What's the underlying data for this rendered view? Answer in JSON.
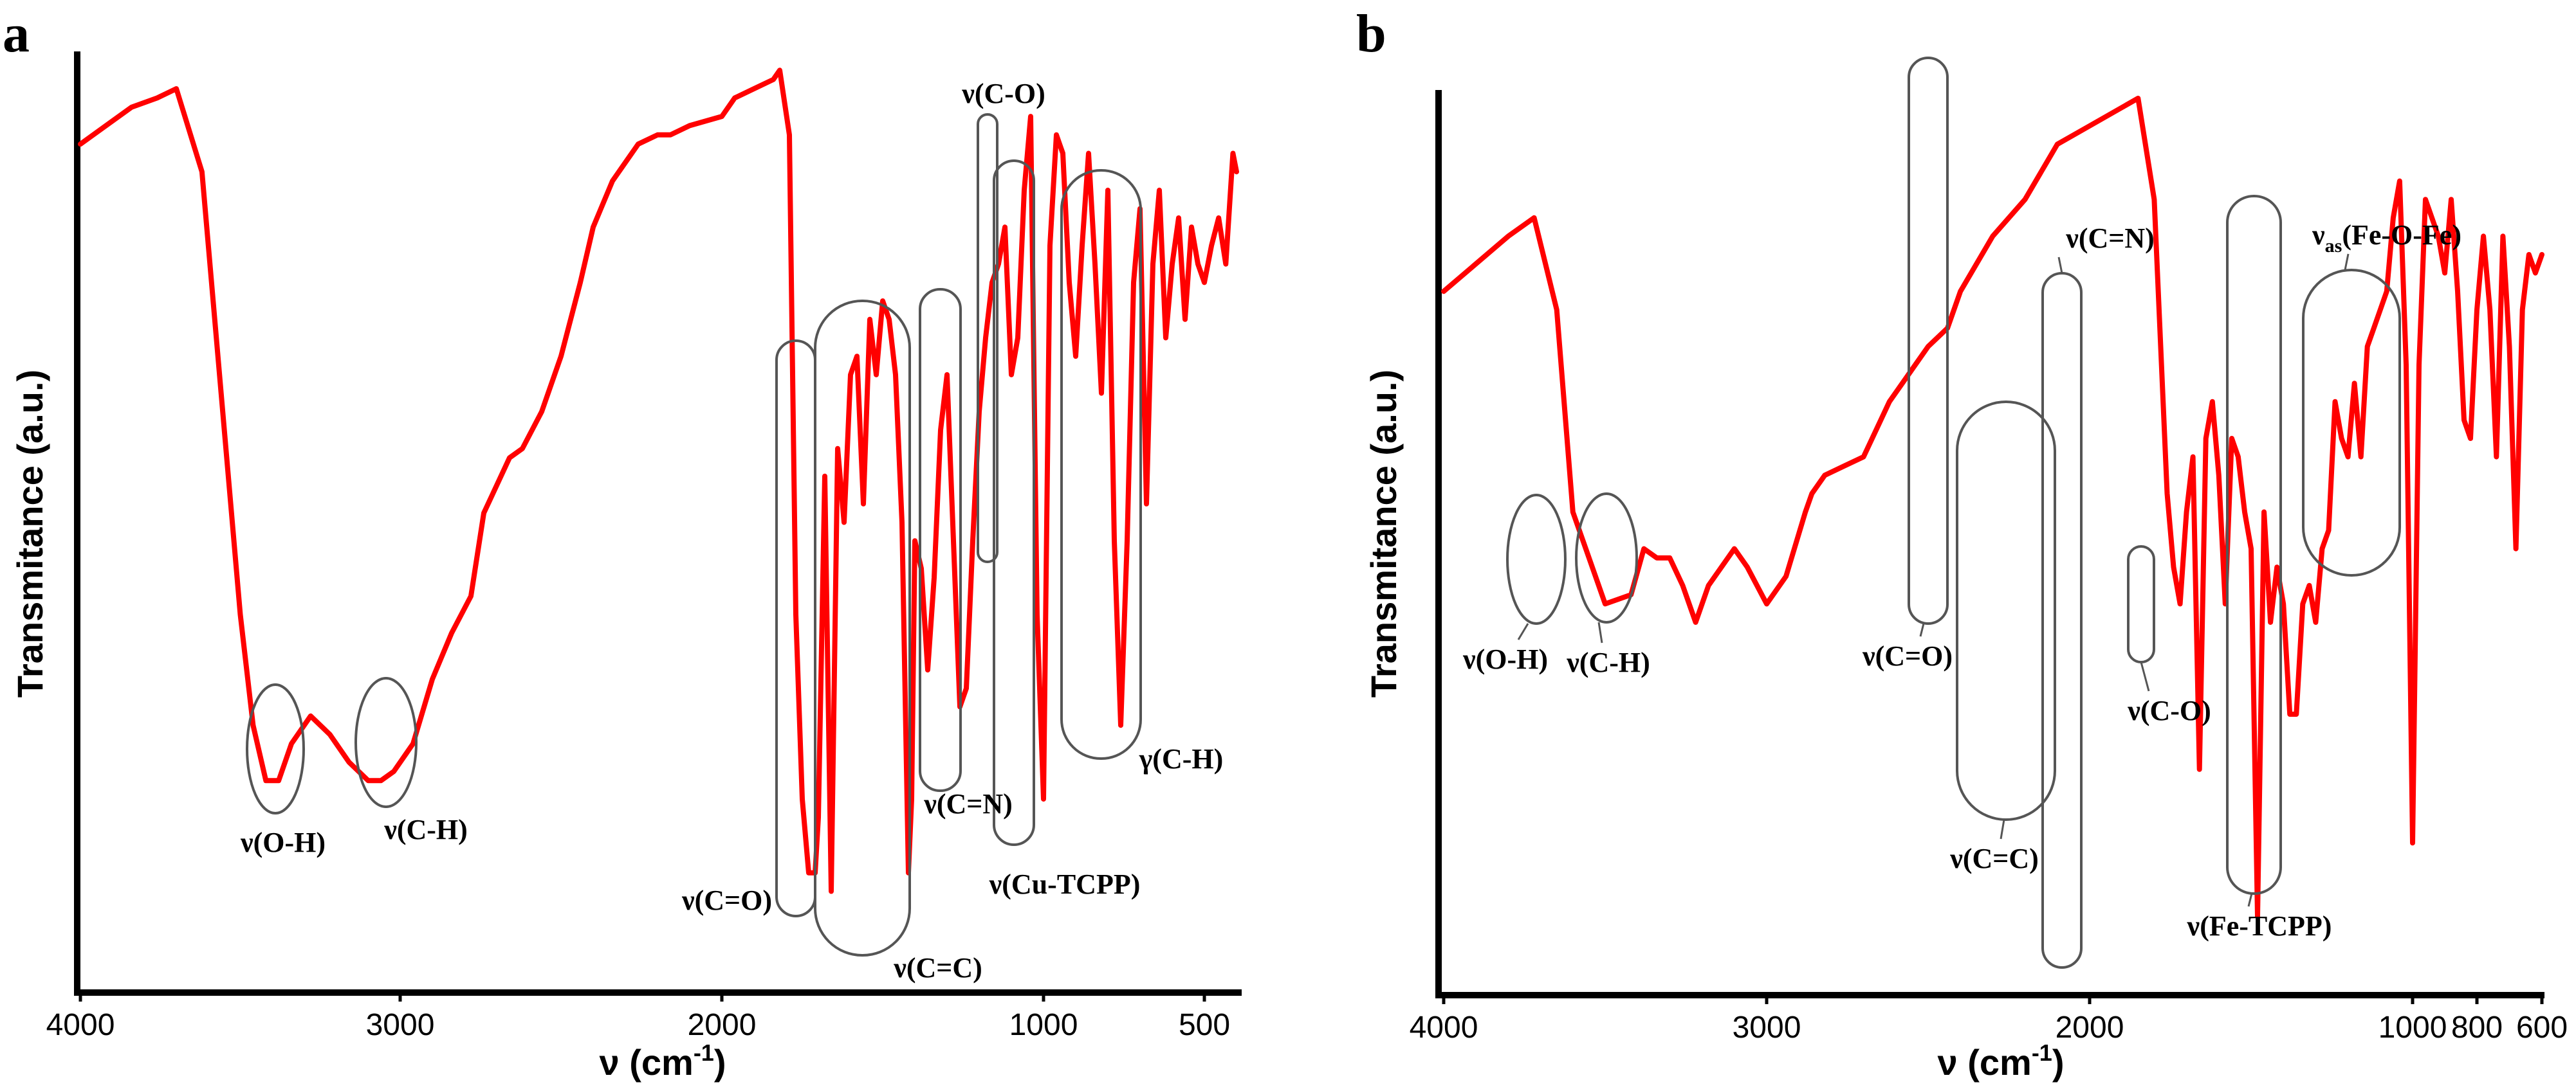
{
  "chart_data": [
    {
      "type": "line",
      "panel_label": "a",
      "xlabel": "ν (cm",
      "xlabel_sup": "-1",
      "xlabel_close": ")",
      "ylabel": "Transmitance (a.u.)",
      "xlim": [
        4000,
        400
      ],
      "ylim": [
        0,
        100
      ],
      "xticks": [
        4000,
        3000,
        2000,
        1000,
        500
      ],
      "tick_labels": [
        "4000",
        "3000",
        "2000",
        "1000",
        "500"
      ],
      "series": [
        {
          "name": "Cu-TCPP",
          "color": "#ff0000",
          "x": [
            4000,
            3920,
            3840,
            3760,
            3700,
            3620,
            3560,
            3500,
            3460,
            3420,
            3380,
            3340,
            3280,
            3220,
            3160,
            3100,
            3060,
            3020,
            2960,
            2900,
            2840,
            2780,
            2740,
            2660,
            2620,
            2560,
            2500,
            2440,
            2400,
            2340,
            2260,
            2200,
            2160,
            2100,
            2000,
            1960,
            1900,
            1840,
            1820,
            1790,
            1770,
            1750,
            1730,
            1710,
            1700,
            1680,
            1660,
            1640,
            1620,
            1600,
            1580,
            1560,
            1540,
            1520,
            1500,
            1480,
            1460,
            1440,
            1420,
            1410,
            1400,
            1380,
            1360,
            1340,
            1320,
            1300,
            1280,
            1260,
            1240,
            1220,
            1200,
            1180,
            1160,
            1140,
            1120,
            1100,
            1080,
            1060,
            1040,
            1020,
            1000,
            980,
            960,
            940,
            920,
            900,
            880,
            860,
            840,
            820,
            800,
            780,
            760,
            740,
            720,
            700,
            680,
            660,
            640,
            620,
            600,
            580,
            560,
            540,
            520,
            500,
            480,
            460,
            440,
            420,
            410
          ],
          "y": [
            91,
            93,
            95,
            96,
            97,
            88,
            64,
            40,
            28,
            22,
            22,
            26,
            29,
            27,
            24,
            22,
            22,
            23,
            26,
            33,
            38,
            42,
            51,
            57,
            58,
            62,
            68,
            76,
            82,
            87,
            91,
            92,
            92,
            93,
            94,
            96,
            97,
            98,
            99,
            92,
            40,
            20,
            12,
            12,
            18,
            55,
            10,
            58,
            50,
            66,
            68,
            52,
            72,
            66,
            74,
            72,
            66,
            50,
            12,
            20,
            48,
            45,
            34,
            44,
            60,
            66,
            48,
            30,
            32,
            48,
            62,
            70,
            76,
            78,
            82,
            66,
            70,
            86,
            94,
            40,
            20,
            80,
            92,
            90,
            76,
            68,
            80,
            90,
            78,
            64,
            86,
            48,
            28,
            48,
            76,
            84,
            52,
            78,
            86,
            70,
            78,
            83,
            72,
            82,
            78,
            76,
            80,
            83,
            78,
            90,
            88
          ]
        }
      ],
      "annotations": [
        {
          "text": "ν(O-H)"
        },
        {
          "text": "ν(C-H)"
        },
        {
          "text": "ν(C=O)"
        },
        {
          "text": "ν(C=C)"
        },
        {
          "text": "ν(C=N)"
        },
        {
          "text": "ν(C-O)"
        },
        {
          "text": "ν(Cu-TCPP)"
        },
        {
          "text": "γ(C-H)"
        }
      ]
    },
    {
      "type": "line",
      "panel_label": "b",
      "xlabel": "ν (cm",
      "xlabel_sup": "-1",
      "xlabel_close": ")",
      "ylabel": "Transmitance (a.u.)",
      "xlim": [
        4000,
        600
      ],
      "ylim": [
        0,
        100
      ],
      "xticks": [
        4000,
        3000,
        2000,
        1000,
        800,
        600
      ],
      "tick_labels": [
        "4000",
        "3000",
        "2000",
        "1000",
        "800",
        "600"
      ],
      "series": [
        {
          "name": "Fe-TCPP",
          "color": "#ff0000",
          "x": [
            4000,
            3900,
            3800,
            3720,
            3650,
            3600,
            3500,
            3420,
            3380,
            3340,
            3300,
            3260,
            3220,
            3180,
            3100,
            3060,
            3000,
            2940,
            2880,
            2860,
            2820,
            2760,
            2700,
            2620,
            2560,
            2500,
            2440,
            2400,
            2300,
            2200,
            2100,
            2000,
            1900,
            1850,
            1800,
            1760,
            1740,
            1720,
            1700,
            1680,
            1660,
            1640,
            1620,
            1600,
            1580,
            1560,
            1540,
            1520,
            1500,
            1480,
            1460,
            1440,
            1420,
            1400,
            1380,
            1360,
            1340,
            1320,
            1300,
            1280,
            1260,
            1240,
            1220,
            1200,
            1180,
            1160,
            1140,
            1120,
            1100,
            1080,
            1060,
            1040,
            1020,
            1000,
            980,
            960,
            940,
            920,
            900,
            880,
            860,
            840,
            820,
            800,
            780,
            760,
            740,
            720,
            700,
            680,
            660,
            640,
            620,
            600
          ],
          "y": [
            76,
            79,
            82,
            84,
            74,
            52,
            42,
            43,
            48,
            47,
            47,
            44,
            40,
            44,
            48,
            46,
            42,
            45,
            52,
            54,
            56,
            57,
            58,
            64,
            67,
            70,
            72,
            76,
            82,
            86,
            92,
            94,
            96,
            97,
            86,
            54,
            46,
            42,
            52,
            58,
            24,
            60,
            64,
            56,
            42,
            60,
            58,
            52,
            48,
            8,
            52,
            40,
            46,
            42,
            30,
            30,
            42,
            44,
            40,
            48,
            50,
            64,
            60,
            58,
            66,
            58,
            70,
            72,
            74,
            76,
            84,
            88,
            68,
            16,
            68,
            86,
            84,
            82,
            78,
            86,
            76,
            62,
            60,
            74,
            82,
            74,
            58,
            82,
            70,
            48,
            74,
            80,
            78,
            80
          ]
        }
      ],
      "annotations": [
        {
          "text": "ν(O-H)"
        },
        {
          "text": "ν(C-H)"
        },
        {
          "text": "ν(C=O)"
        },
        {
          "text": "ν(C=C)"
        },
        {
          "text": "ν(C=N)"
        },
        {
          "text": "ν(C-O)"
        },
        {
          "text": "ν(Fe-TCPP)"
        },
        {
          "text": "ν",
          "sub": "as",
          "rest": "(Fe-O-Fe)"
        }
      ]
    }
  ]
}
